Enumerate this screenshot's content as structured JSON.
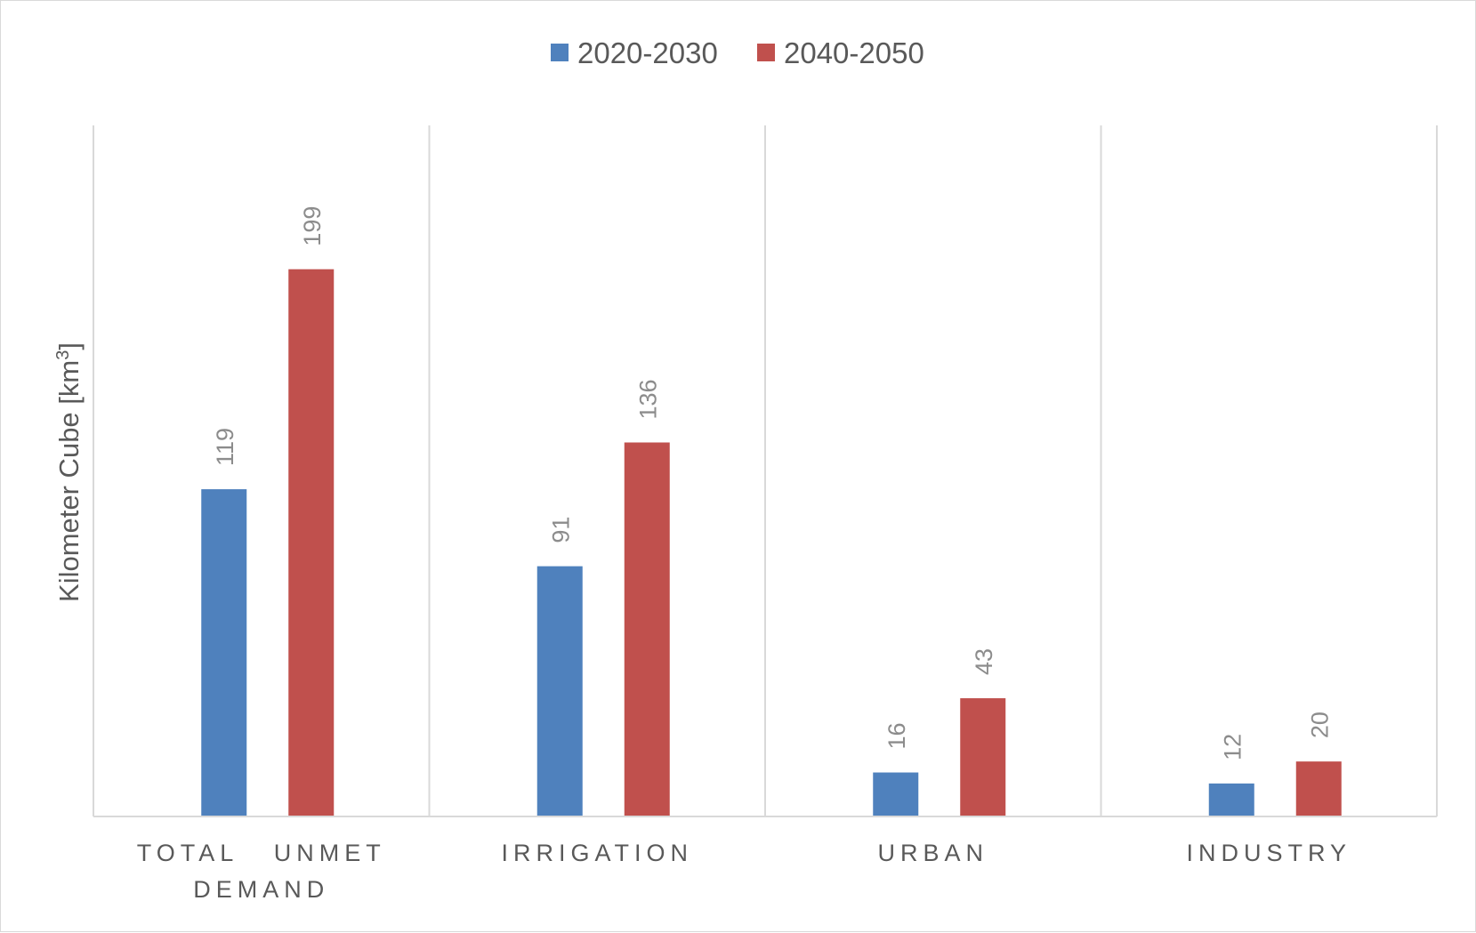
{
  "chart_data": {
    "type": "bar",
    "categories": [
      "TOTAL UNMET DEMAND",
      "IRRIGATION",
      "URBAN",
      "INDUSTRY"
    ],
    "category_lines": [
      [
        "TOTAL   UNMET",
        "DEMAND"
      ],
      [
        "IRRIGATION"
      ],
      [
        "URBAN"
      ],
      [
        "INDUSTRY"
      ]
    ],
    "series": [
      {
        "name": "2020-2030",
        "values": [
          119,
          91,
          16,
          12
        ],
        "color": "#4f81bd"
      },
      {
        "name": "2040-2050",
        "values": [
          199,
          136,
          43,
          20
        ],
        "color": "#c0504d"
      }
    ],
    "title": "",
    "xlabel": "",
    "ylabel": "Kilometer Cube [km3]",
    "ylabel_main": "Kilometer Cube [km",
    "ylabel_sup": "3",
    "ylabel_end": "]",
    "ylim": [
      0,
      250
    ],
    "legend_position": "top-center",
    "grid": "vertical category separators",
    "data_labels": true
  }
}
